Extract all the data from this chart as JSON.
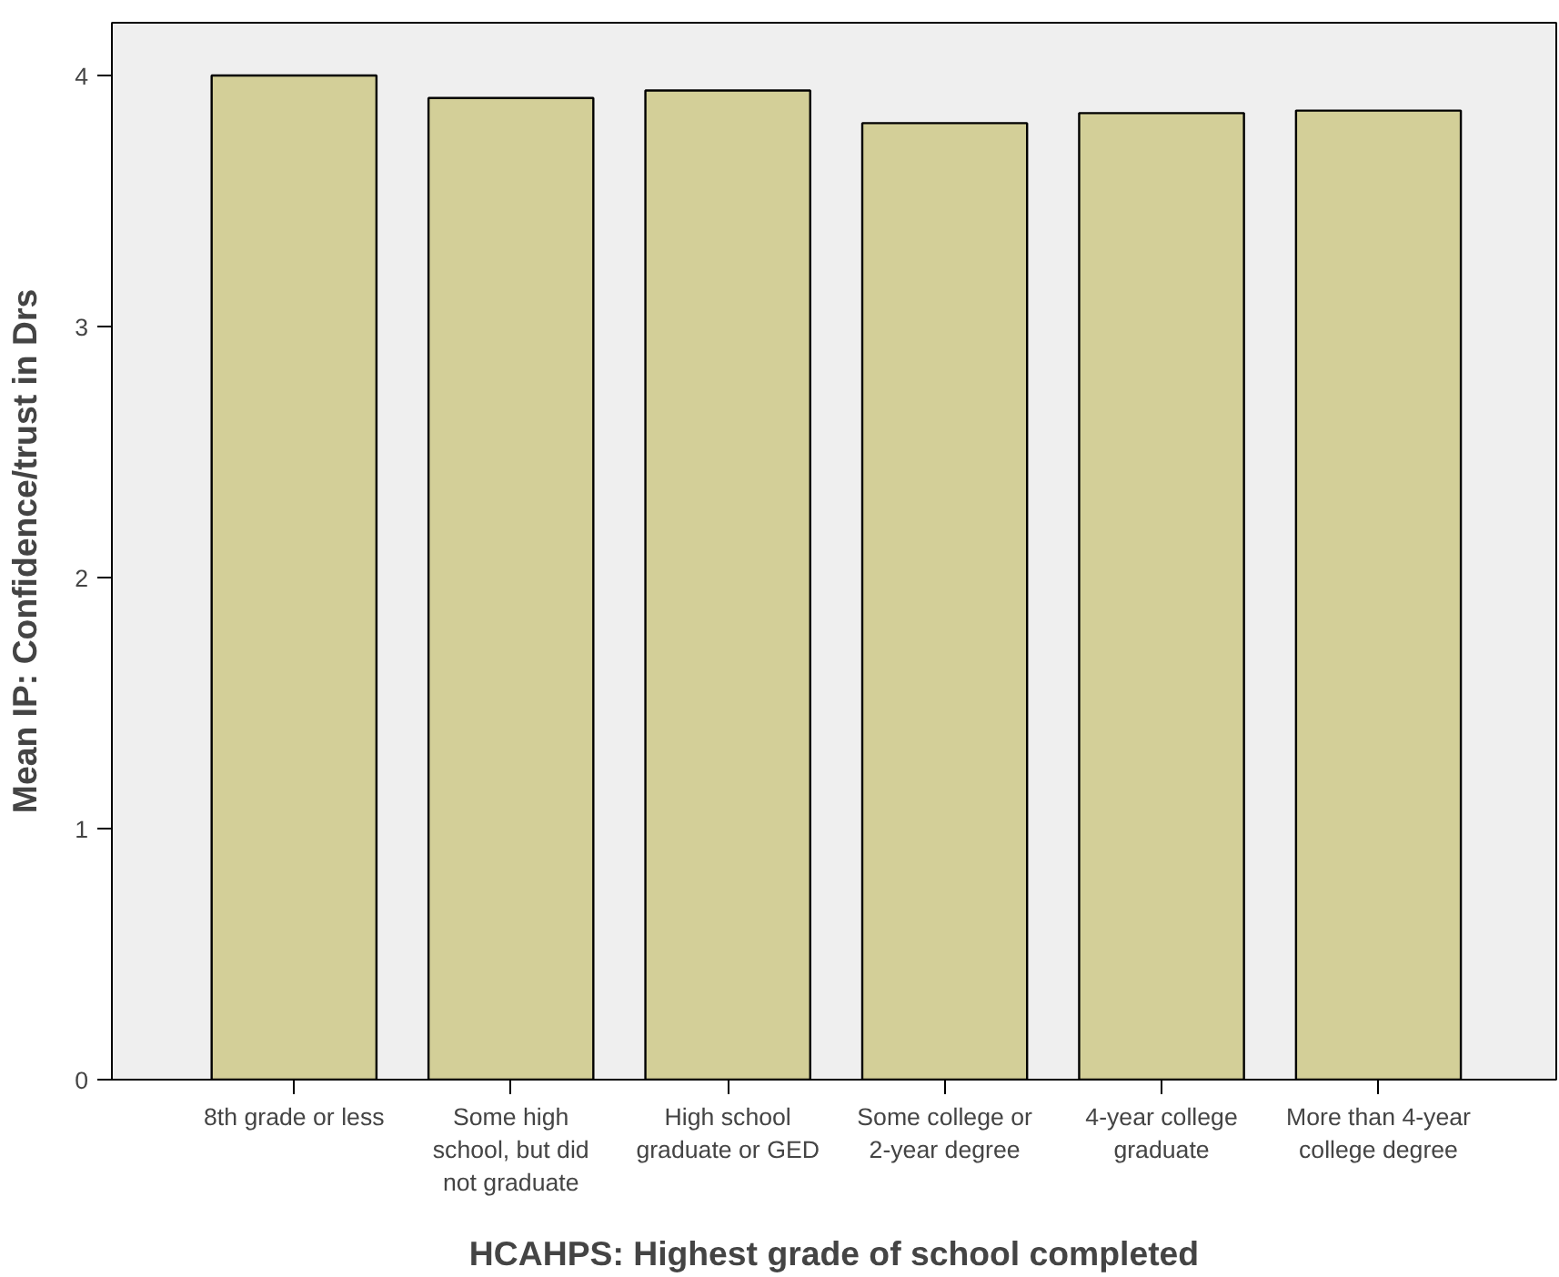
{
  "chart_data": {
    "type": "bar",
    "xlabel": "HCAHPS: Highest grade of school completed",
    "ylabel": "Mean IP: Confidence/trust in Drs",
    "categories": [
      "8th grade or less",
      "Some high\nschool, but did\nnot graduate",
      "High school\ngraduate or GED",
      "Some college or\n2-year degree",
      "4-year college\ngraduate",
      "More than 4-year\ncollege degree"
    ],
    "values": [
      4.0,
      3.91,
      3.94,
      3.81,
      3.85,
      3.86
    ],
    "color": "#d3cf98",
    "ylim": [
      0,
      4.21
    ],
    "yticks": [
      0,
      1,
      2,
      3,
      4
    ],
    "grid": false
  }
}
